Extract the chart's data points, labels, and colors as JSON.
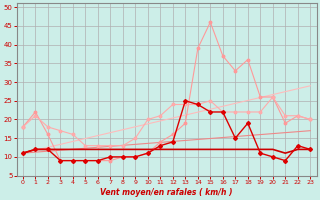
{
  "bg_color": "#cceee8",
  "grid_color": "#b0b0b0",
  "xlabel": "Vent moyen/en rafales ( km/h )",
  "xlabel_color": "#cc0000",
  "tick_color": "#cc0000",
  "xlim": [
    -0.5,
    23.5
  ],
  "ylim": [
    5,
    51
  ],
  "yticks": [
    5,
    10,
    15,
    20,
    25,
    30,
    35,
    40,
    45,
    50
  ],
  "xticks": [
    0,
    1,
    2,
    3,
    4,
    5,
    6,
    7,
    8,
    9,
    10,
    11,
    12,
    13,
    14,
    15,
    16,
    17,
    18,
    19,
    20,
    21,
    22,
    23
  ],
  "lines": [
    {
      "x": [
        0,
        1,
        2,
        3,
        4,
        5,
        6,
        7,
        8,
        9,
        10,
        11,
        12,
        13,
        14,
        15,
        16,
        17,
        18,
        19,
        20,
        21,
        22,
        23
      ],
      "y": [
        18,
        22,
        16,
        9,
        9,
        9,
        9,
        9,
        10,
        10,
        11,
        14,
        16,
        19,
        39,
        46,
        37,
        33,
        36,
        26,
        26,
        19,
        21,
        20
      ],
      "color": "#ff9999",
      "lw": 0.8,
      "marker": "o",
      "ms": 1.8,
      "zorder": 3
    },
    {
      "x": [
        0,
        1,
        2,
        3,
        4,
        5,
        6,
        7,
        8,
        9,
        10,
        11,
        12,
        13,
        14,
        15,
        16,
        17,
        18,
        19,
        20,
        21,
        22,
        23
      ],
      "y": [
        18,
        21,
        18,
        17,
        16,
        13,
        13,
        13,
        13,
        15,
        20,
        21,
        24,
        24,
        24,
        25,
        22,
        22,
        22,
        22,
        26,
        21,
        21,
        20
      ],
      "color": "#ffaaaa",
      "lw": 0.8,
      "marker": "o",
      "ms": 1.8,
      "zorder": 3
    },
    {
      "x": [
        0,
        23
      ],
      "y": [
        11,
        29
      ],
      "color": "#ffbbbb",
      "lw": 0.8,
      "marker": null,
      "ms": 0,
      "zorder": 2
    },
    {
      "x": [
        0,
        23
      ],
      "y": [
        11,
        17
      ],
      "color": "#ee8888",
      "lw": 0.8,
      "marker": null,
      "ms": 0,
      "zorder": 2
    },
    {
      "x": [
        0,
        1,
        2,
        3,
        4,
        5,
        6,
        7,
        8,
        9,
        10,
        11,
        12,
        13,
        14,
        15,
        16,
        17,
        18,
        19,
        20,
        21,
        22,
        23
      ],
      "y": [
        11,
        12,
        12,
        12,
        12,
        12,
        12,
        12,
        12,
        12,
        12,
        12,
        12,
        12,
        12,
        12,
        12,
        12,
        12,
        12,
        12,
        11,
        12,
        12
      ],
      "color": "#cc0000",
      "lw": 1.2,
      "marker": null,
      "ms": 0,
      "zorder": 4
    },
    {
      "x": [
        0,
        1,
        2,
        3,
        4,
        5,
        6,
        7,
        8,
        9,
        10,
        11,
        12,
        13,
        14,
        15,
        16,
        17,
        18,
        19,
        20,
        21,
        22,
        23
      ],
      "y": [
        11,
        12,
        12,
        9,
        9,
        9,
        9,
        10,
        10,
        10,
        11,
        13,
        14,
        25,
        24,
        22,
        22,
        15,
        19,
        11,
        10,
        9,
        13,
        12
      ],
      "color": "#dd0000",
      "lw": 1.0,
      "marker": "D",
      "ms": 2.0,
      "zorder": 5
    }
  ]
}
